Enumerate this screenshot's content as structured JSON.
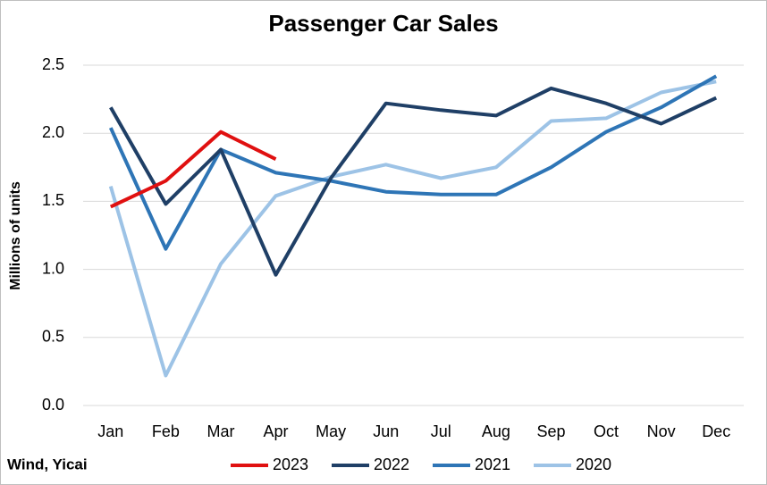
{
  "chart_data": {
    "type": "line",
    "title": "Passenger Car Sales",
    "y_label": "Millions of units",
    "source": "Wind, Yicai",
    "categories": [
      "Jan",
      "Feb",
      "Mar",
      "Apr",
      "May",
      "Jun",
      "Jul",
      "Aug",
      "Sep",
      "Oct",
      "Nov",
      "Dec"
    ],
    "series": [
      {
        "name": "2023",
        "color": "#e01010",
        "values": [
          1.46,
          1.65,
          2.01,
          1.81,
          null,
          null,
          null,
          null,
          null,
          null,
          null,
          null
        ]
      },
      {
        "name": "2022",
        "color": "#1f3f66",
        "values": [
          2.19,
          1.48,
          1.88,
          0.96,
          1.67,
          2.22,
          2.17,
          2.13,
          2.33,
          2.22,
          2.07,
          2.26
        ]
      },
      {
        "name": "2021",
        "color": "#2e75b6",
        "values": [
          2.04,
          1.15,
          1.88,
          1.71,
          1.65,
          1.57,
          1.55,
          1.55,
          1.75,
          2.01,
          2.19,
          2.42
        ]
      },
      {
        "name": "2020",
        "color": "#9dc3e6",
        "values": [
          1.61,
          0.22,
          1.04,
          1.54,
          1.68,
          1.77,
          1.67,
          1.75,
          2.09,
          2.11,
          2.3,
          2.38
        ]
      }
    ],
    "ylim": [
      0,
      2.5
    ],
    "yticks": [
      {
        "value": 0,
        "label": "0.0"
      },
      0.5,
      {
        "value": 1,
        "label": "1.0"
      },
      1.5,
      {
        "value": 2,
        "label": "2.0"
      },
      2.5
    ],
    "grid": true,
    "legend": "bottom"
  }
}
